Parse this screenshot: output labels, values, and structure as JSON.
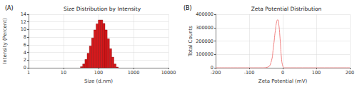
{
  "chart_data": [
    {
      "type": "histogram",
      "title": "Size Distribution by Intensity",
      "annotations": [
        "(A)"
      ],
      "xlabel": "Size (d.nm)",
      "ylabel": "Intensity (Percent)",
      "bins": [
        30.4,
        35.2,
        40.8,
        47.2,
        54.7,
        63.3,
        73.3,
        84.9,
        98.3,
        113.8,
        131.8,
        152.6,
        176.7,
        204.6,
        237.0,
        274.4,
        317.8,
        368.0
      ],
      "values": [
        0.3,
        1.0,
        2.2,
        3.8,
        5.7,
        7.8,
        9.9,
        11.5,
        12.5,
        12.5,
        11.6,
        9.9,
        7.6,
        5.0,
        2.8,
        1.0,
        0.2
      ],
      "color": "#d7191c",
      "log": "x",
      "xlim": [
        1,
        10000
      ],
      "xticks": [
        1,
        10,
        100,
        1000,
        10000
      ],
      "ylim": [
        0,
        14
      ],
      "yticks": [
        0,
        2,
        4,
        6,
        8,
        10,
        12,
        14
      ],
      "grid": true
    },
    {
      "type": "line",
      "title": "Zeta Potential Distribution",
      "annotations": [
        "(B)"
      ],
      "xlabel": "Zeta Potential (mV)",
      "ylabel": "Total Counts",
      "x": [
        -200,
        -60,
        -45,
        -35,
        -28,
        -22,
        -18,
        -15,
        -12,
        -8,
        -4,
        0,
        5,
        200
      ],
      "values": [
        0,
        0,
        5000,
        40000,
        150000,
        280000,
        345000,
        360000,
        330000,
        220000,
        80000,
        15000,
        0,
        0
      ],
      "color": "#f08080",
      "xlim": [
        -200,
        200
      ],
      "xticks": [
        -200,
        -100,
        0,
        100,
        200
      ],
      "ylim": [
        0,
        400000
      ],
      "yticks": [
        0,
        100000,
        200000,
        300000,
        400000
      ],
      "grid": true
    }
  ]
}
